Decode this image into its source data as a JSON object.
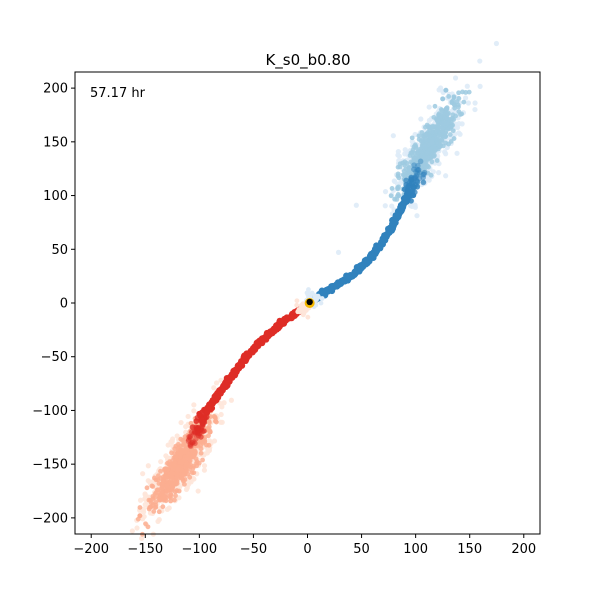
{
  "chart_data": {
    "type": "scatter",
    "title": "K_s0_b0.80",
    "annotation": "57.17 hr",
    "xlabel": "",
    "ylabel": "",
    "xlim": [
      -215,
      215
    ],
    "ylim": [
      -215,
      215
    ],
    "xticks": [
      -200,
      -150,
      -100,
      -50,
      0,
      50,
      100,
      150,
      200
    ],
    "yticks": [
      -200,
      -150,
      -100,
      -50,
      0,
      50,
      100,
      150,
      200
    ],
    "grid": false,
    "colors": {
      "red_strong": "#de2d26",
      "red_light": "#fcae91",
      "red_pale": "#fee5d9",
      "blue_strong": "#3182bd",
      "blue_light": "#9ecae1",
      "blue_pale": "#deebf7",
      "core": "#000000",
      "core_ring": "#f5b800"
    },
    "series": [
      {
        "arm": "upper-right",
        "trunk": [
          [
            5,
            3
          ],
          [
            20,
            12
          ],
          [
            40,
            25
          ],
          [
            55,
            38
          ],
          [
            68,
            55
          ],
          [
            80,
            75
          ],
          [
            92,
            98
          ]
        ],
        "cloud_center": [
          112,
          145
        ],
        "cloud_points_approx": [
          [
            100,
            110
          ],
          [
            108,
            130
          ],
          [
            115,
            150
          ],
          [
            120,
            170
          ],
          [
            125,
            190
          ],
          [
            128,
            198
          ],
          [
            95,
            125
          ],
          [
            90,
            115
          ]
        ]
      },
      {
        "arm": "lower-left",
        "trunk": [
          [
            -3,
            -5
          ],
          [
            -18,
            -14
          ],
          [
            -35,
            -28
          ],
          [
            -52,
            -45
          ],
          [
            -68,
            -65
          ],
          [
            -82,
            -85
          ],
          [
            -95,
            -102
          ]
        ],
        "cloud_center": [
          -118,
          -150
        ],
        "cloud_points_approx": [
          [
            -105,
            -115
          ],
          [
            -112,
            -135
          ],
          [
            -120,
            -155
          ],
          [
            -130,
            -170
          ],
          [
            -145,
            -190
          ],
          [
            -155,
            -198
          ],
          [
            -90,
            -120
          ],
          [
            -85,
            -110
          ]
        ]
      }
    ]
  }
}
